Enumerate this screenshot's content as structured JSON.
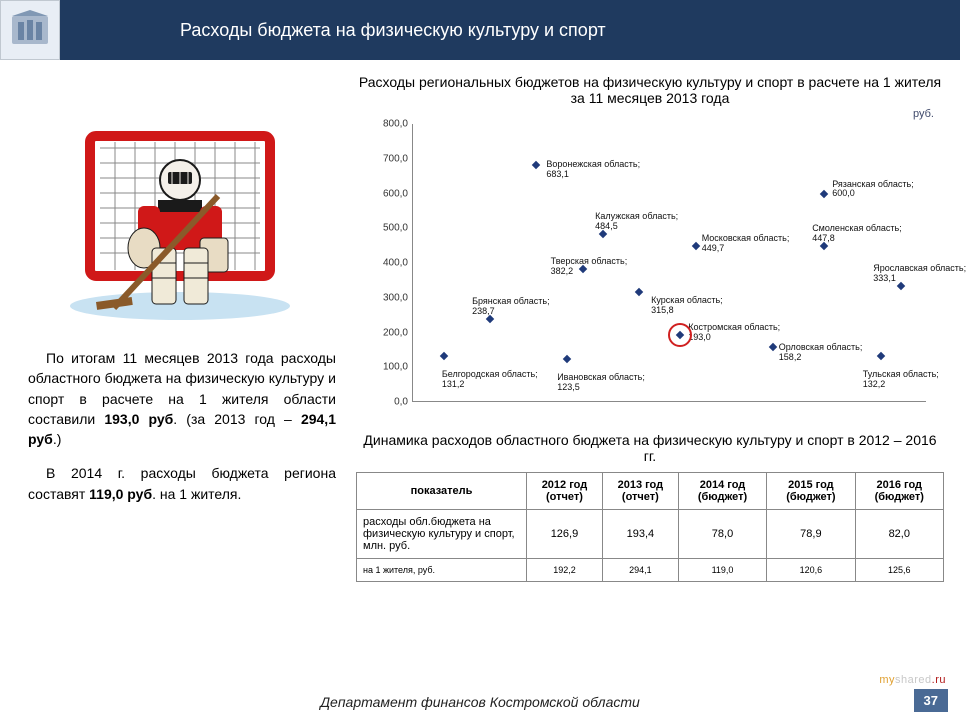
{
  "header": {
    "title": "Расходы бюджета на физическую культуру и спорт"
  },
  "chart": {
    "title": "Расходы региональных бюджетов на физическую культуру и спорт в расчете на 1 жителя за 11 месяцев 2013 года",
    "unit": "руб.",
    "ylim": [
      0,
      800
    ],
    "ytick_step": 100,
    "marker_color": "#1f3a7a",
    "highlight_color": "#d02020",
    "background": "#ffffff",
    "points": [
      {
        "x": 0.06,
        "label": "Белгородская область; 131,2",
        "value": 131.2,
        "lx": -2,
        "ly": 14
      },
      {
        "x": 0.15,
        "label": "Брянская область; 238,7",
        "value": 238.7,
        "lx": -18,
        "ly": -22
      },
      {
        "x": 0.24,
        "label": "Воронежская область; 683,1",
        "value": 683.1,
        "lx": 10,
        "ly": -5
      },
      {
        "x": 0.3,
        "label": "Ивановская область; 123,5",
        "value": 123.5,
        "lx": -10,
        "ly": 14
      },
      {
        "x": 0.37,
        "label": "Калужская область; 484,5",
        "value": 484.5,
        "lx": -8,
        "ly": -22
      },
      {
        "x": 0.52,
        "label": "Костромская область; 193,0",
        "value": 193.0,
        "lx": 8,
        "ly": -12,
        "highlight": true
      },
      {
        "x": 0.44,
        "label": "Курская область; 315,8",
        "value": 315.8,
        "lx": 12,
        "ly": 4
      },
      {
        "x": 0.55,
        "label": "Московская область; 449,7",
        "value": 449.7,
        "lx": 6,
        "ly": -12
      },
      {
        "x": 0.7,
        "label": "Орловская область; 158,2",
        "value": 158.2,
        "lx": 6,
        "ly": -4
      },
      {
        "x": 0.8,
        "label": "Рязанская область; 600,0",
        "value": 600.0,
        "lx": 8,
        "ly": -14
      },
      {
        "x": 0.8,
        "label": "Смоленская область; 447,8",
        "value": 447.8,
        "lx": -12,
        "ly": -22
      },
      {
        "x": 0.33,
        "label": "Тверская область; 382,2",
        "value": 382.2,
        "lx": -32,
        "ly": -12
      },
      {
        "x": 0.91,
        "label": "Тульская область; 132,2",
        "value": 132.2,
        "lx": -18,
        "ly": 14
      },
      {
        "x": 0.95,
        "label": "Ярославская область; 333,1",
        "value": 333.1,
        "lx": -28,
        "ly": -22
      }
    ]
  },
  "body_text": {
    "p1a": "По итогам 11 месяцев 2013 года расходы областного бюджета на физическую культуру и спорт в расчете на 1 жителя области составили ",
    "p1b": "193,0 руб",
    "p1c": ". (за 2013 год – ",
    "p1d": "294,1 руб",
    "p1e": ".)",
    "p2a": "В 2014 г. расходы бюджета региона составят ",
    "p2b": "119,0 руб",
    "p2c": ". на 1 жителя."
  },
  "table": {
    "title": "Динамика расходов областного бюджета на физическую культуру и спорт в 2012 – 2016 гг.",
    "columns": [
      "показатель",
      "2012 год (отчет)",
      "2013 год (отчет)",
      "2014 год (бюджет)",
      "2015 год (бюджет)",
      "2016 год (бюджет)"
    ],
    "rows": [
      [
        "расходы обл.бюджета на физическую культуру и спорт, млн. руб.",
        "126,9",
        "193,4",
        "78,0",
        "78,9",
        "82,0"
      ],
      [
        "на 1 жителя, руб.",
        "192,2",
        "294,1",
        "119,0",
        "120,6",
        "125,6"
      ]
    ]
  },
  "footer": "Департамент финансов Костромской области",
  "page": "37",
  "watermark": "myshared.ru"
}
